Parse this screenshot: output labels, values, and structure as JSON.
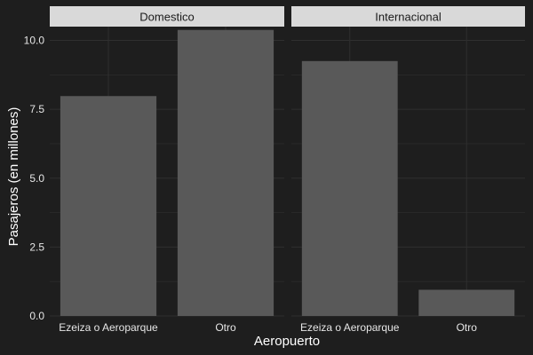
{
  "chart_data": {
    "type": "bar",
    "xlabel": "Aeropuerto",
    "ylabel": "Pasajeros (en millones)",
    "ylim": [
      0,
      10.5
    ],
    "y_ticks": [
      0,
      2.5,
      5,
      7.5,
      10
    ],
    "y_tick_labels": [
      "0.0",
      "2.5",
      "5.0",
      "7.5",
      "10.0"
    ],
    "grid": true,
    "bar_color": "#595959",
    "background_color": "#1e1e1e",
    "grid_color": "#2f2f2f",
    "strip_color": "#d9d9d9",
    "panels": [
      {
        "name": "Domestico",
        "categories": [
          "Ezeiza o Aeroparque",
          "Otro"
        ],
        "values": [
          7.98,
          10.38
        ]
      },
      {
        "name": "Internacional",
        "categories": [
          "Ezeiza o Aeroparque",
          "Otro"
        ],
        "values": [
          9.25,
          0.95
        ]
      }
    ]
  }
}
